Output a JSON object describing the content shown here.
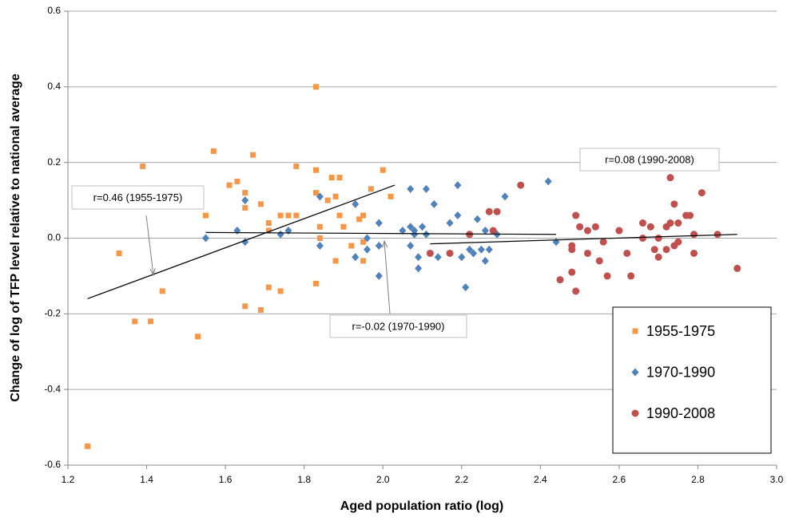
{
  "chart_data": {
    "type": "scatter",
    "x_label": "Aged population ratio (log)",
    "y_label": "Change of log of TFP level relative to national average",
    "xlim": [
      1.2,
      3.0
    ],
    "ylim": [
      -0.6,
      0.6
    ],
    "xticks": [
      1.2,
      1.4,
      1.6,
      1.8,
      {
        "value": 2,
        "label": "2.0"
      },
      2.2,
      2.4,
      2.6,
      2.8,
      {
        "value": 3,
        "label": "3.0"
      }
    ],
    "yticks": [
      -0.6,
      -0.4,
      -0.2,
      {
        "value": 0,
        "label": "0.0"
      },
      0.2,
      0.4,
      0.6
    ],
    "grid": true,
    "legend": "lower right",
    "series": [
      {
        "name": "1955-1975",
        "color": "#f79646",
        "marker": "square",
        "x": [
          1.25,
          1.33,
          1.39,
          1.37,
          1.41,
          1.44,
          1.53,
          1.55,
          1.57,
          1.61,
          1.63,
          1.65,
          1.65,
          1.65,
          1.67,
          1.69,
          1.69,
          1.71,
          1.71,
          1.71,
          1.74,
          1.74,
          1.76,
          1.78,
          1.78,
          1.83,
          1.83,
          1.83,
          1.83,
          1.84,
          1.84,
          1.86,
          1.87,
          1.88,
          1.88,
          1.89,
          1.89,
          1.9,
          1.92,
          1.94,
          1.95,
          1.95,
          1.95,
          1.97,
          2.0,
          2.02
        ],
        "y": [
          -0.55,
          -0.04,
          0.19,
          -0.22,
          -0.22,
          -0.14,
          -0.26,
          0.06,
          0.23,
          0.14,
          0.15,
          0.12,
          0.08,
          -0.18,
          0.22,
          0.09,
          -0.19,
          0.04,
          0.02,
          -0.13,
          0.06,
          -0.14,
          0.06,
          0.19,
          0.06,
          0.4,
          0.18,
          0.12,
          -0.12,
          0.03,
          0.0,
          0.1,
          0.16,
          0.11,
          -0.06,
          0.06,
          0.16,
          0.03,
          -0.02,
          0.05,
          0.06,
          -0.06,
          -0.01,
          0.13,
          0.18,
          0.11
        ],
        "trend": {
          "x": [
            1.25,
            2.03
          ],
          "y": [
            -0.16,
            0.14
          ]
        }
      },
      {
        "name": "1970-1990",
        "color": "#4f81bd",
        "marker": "diamond",
        "x": [
          1.55,
          1.63,
          1.65,
          1.65,
          1.74,
          1.76,
          1.84,
          1.84,
          1.93,
          1.93,
          1.96,
          1.96,
          1.99,
          1.99,
          1.99,
          2.05,
          2.07,
          2.07,
          2.07,
          2.08,
          2.08,
          2.09,
          2.09,
          2.1,
          2.11,
          2.11,
          2.13,
          2.14,
          2.17,
          2.19,
          2.19,
          2.2,
          2.21,
          2.22,
          2.23,
          2.24,
          2.25,
          2.26,
          2.26,
          2.27,
          2.29,
          2.31,
          2.42,
          2.44
        ],
        "y": [
          0.0,
          0.02,
          0.1,
          -0.01,
          0.01,
          0.02,
          0.11,
          -0.02,
          0.09,
          -0.05,
          -0.03,
          0.0,
          -0.1,
          0.04,
          -0.02,
          0.02,
          0.13,
          0.03,
          -0.02,
          0.02,
          0.01,
          -0.08,
          -0.05,
          0.03,
          0.13,
          0.01,
          0.09,
          -0.05,
          0.04,
          0.06,
          0.14,
          -0.05,
          -0.13,
          -0.03,
          -0.04,
          0.05,
          -0.03,
          0.02,
          -0.06,
          -0.03,
          0.01,
          0.11,
          0.15,
          -0.01
        ],
        "trend": {
          "x": [
            1.55,
            2.44
          ],
          "y": [
            0.015,
            0.01
          ]
        }
      },
      {
        "name": "1990-2008",
        "color": "#c0504d",
        "marker": "circle",
        "x": [
          2.12,
          2.17,
          2.22,
          2.27,
          2.28,
          2.29,
          2.35,
          2.45,
          2.48,
          2.48,
          2.48,
          2.49,
          2.49,
          2.5,
          2.52,
          2.52,
          2.54,
          2.55,
          2.56,
          2.57,
          2.6,
          2.62,
          2.63,
          2.66,
          2.66,
          2.68,
          2.69,
          2.7,
          2.7,
          2.72,
          2.72,
          2.73,
          2.73,
          2.74,
          2.74,
          2.75,
          2.75,
          2.77,
          2.78,
          2.79,
          2.79,
          2.81,
          2.85,
          2.9
        ],
        "y": [
          -0.04,
          -0.04,
          0.01,
          0.07,
          0.02,
          0.07,
          0.14,
          -0.11,
          -0.02,
          -0.03,
          -0.09,
          0.06,
          -0.14,
          0.03,
          -0.04,
          0.02,
          0.03,
          -0.06,
          -0.01,
          -0.1,
          0.02,
          -0.04,
          -0.1,
          0.0,
          0.04,
          0.03,
          -0.03,
          0.0,
          -0.05,
          -0.03,
          0.03,
          0.04,
          0.16,
          -0.02,
          0.09,
          -0.01,
          0.04,
          0.06,
          0.06,
          -0.04,
          0.01,
          0.12,
          0.01,
          -0.08
        ],
        "trend": {
          "x": [
            2.12,
            2.9
          ],
          "y": [
            -0.015,
            0.01
          ]
        }
      }
    ],
    "annotations": [
      {
        "text": "r=0.46 (1955-1975)"
      },
      {
        "text": "r=-0.02 (1970-1990)"
      },
      {
        "text": "r=0.08 (1990-2008)"
      }
    ]
  }
}
